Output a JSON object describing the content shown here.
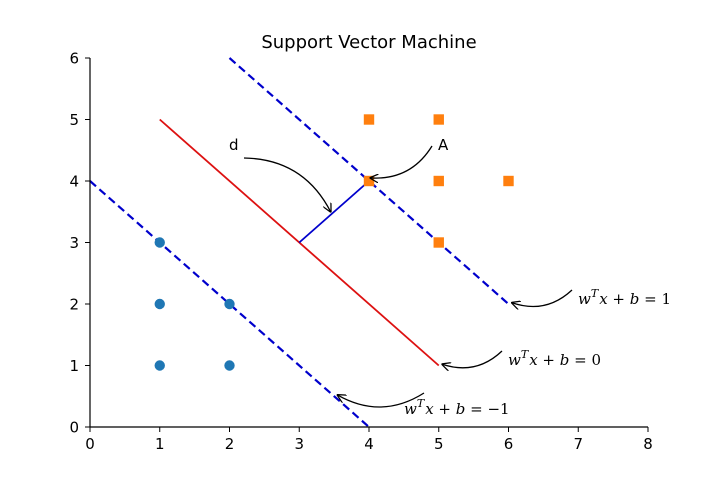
{
  "chart_data": {
    "type": "scatter",
    "title": "Support Vector Machine",
    "xlabel": "",
    "ylabel": "",
    "xlim": [
      0,
      8
    ],
    "ylim": [
      0,
      6
    ],
    "xticks": [
      "0",
      "1",
      "2",
      "3",
      "4",
      "5",
      "6",
      "7",
      "8"
    ],
    "yticks": [
      "0",
      "1",
      "2",
      "3",
      "4",
      "5",
      "6"
    ],
    "grid": false,
    "series": [
      {
        "marker": "circle",
        "color": "#1f77b4",
        "points": [
          [
            1,
            1
          ],
          [
            2,
            1
          ],
          [
            1,
            2
          ],
          [
            2,
            2
          ],
          [
            1,
            3
          ]
        ]
      },
      {
        "marker": "square",
        "color": "#ff7f0e",
        "points": [
          [
            4,
            4
          ],
          [
            5,
            4
          ],
          [
            6,
            4
          ],
          [
            5,
            5
          ],
          [
            4,
            5
          ],
          [
            5,
            3
          ]
        ]
      }
    ],
    "lines": [
      {
        "role": "decision-boundary",
        "style": "solid",
        "color": "#dd1111",
        "from": [
          1,
          5
        ],
        "to": [
          5,
          1
        ]
      },
      {
        "role": "positive-margin",
        "style": "dashed",
        "color": "#0000cc",
        "from": [
          2,
          6
        ],
        "to": [
          6,
          2
        ]
      },
      {
        "role": "negative-margin",
        "style": "dashed",
        "color": "#0000cc",
        "from": [
          0,
          4
        ],
        "to": [
          4,
          0
        ]
      },
      {
        "role": "margin-distance",
        "style": "solid",
        "color": "#0000cc",
        "from": [
          3,
          3
        ],
        "to": [
          4,
          4
        ]
      }
    ],
    "annotations": [
      {
        "text": "d",
        "xy": [
          3.45,
          3.5
        ],
        "xytext": [
          2.05,
          4.5
        ]
      },
      {
        "text": "A",
        "xy": [
          4.02,
          4.05
        ],
        "xytext": [
          5.0,
          4.5
        ]
      },
      {
        "text": "w^T x + b = 1",
        "xy": [
          6.05,
          2.02
        ],
        "xytext": [
          7.0,
          2.0
        ]
      },
      {
        "text": "w^T x + b = 0",
        "xy": [
          5.05,
          1.02
        ],
        "xytext": [
          6.0,
          1.0
        ]
      },
      {
        "text": "w^T x + b = -1",
        "xy": [
          3.55,
          0.52
        ],
        "xytext": [
          4.5,
          0.2
        ]
      }
    ],
    "equation_labels": {
      "pos": {
        "w": "w",
        "T": "T",
        "rest": "x + b = ",
        "rhs": "1"
      },
      "zero": {
        "w": "w",
        "T": "T",
        "rest": "x + b = ",
        "rhs": "0"
      },
      "neg": {
        "w": "w",
        "T": "T",
        "rest": "x + b = ",
        "rhs": "−1"
      }
    }
  }
}
